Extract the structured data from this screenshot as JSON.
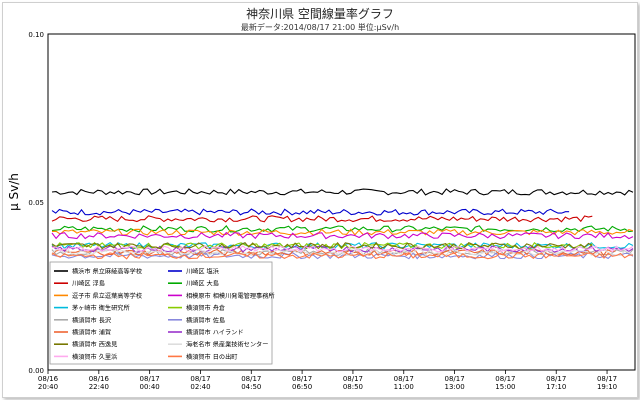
{
  "title": "神奈川県 空間線量率グラフ",
  "subtitle": "最新データ:2014/08/17 21:00  単位:μSv/h",
  "chart_data": {
    "type": "line",
    "title": "神奈川県 空間線量率グラフ",
    "subtitle": "最新データ:2014/08/17 21:00  単位:μSv/h",
    "ylabel": "μ Sv/h",
    "ylim": [
      0.0,
      0.1
    ],
    "yticks": [
      "0.00",
      "0.05",
      "0.10"
    ],
    "grid": true,
    "legend_placement": "lower-left",
    "x_ticks": [
      {
        "date": "08/16",
        "time": "20:40"
      },
      {
        "date": "08/16",
        "time": "22:40"
      },
      {
        "date": "08/17",
        "time": "00:40"
      },
      {
        "date": "08/17",
        "time": "02:40"
      },
      {
        "date": "08/17",
        "time": "04:50"
      },
      {
        "date": "08/17",
        "time": "06:50"
      },
      {
        "date": "08/17",
        "time": "08:50"
      },
      {
        "date": "08/17",
        "time": "11:00"
      },
      {
        "date": "08/17",
        "time": "13:00"
      },
      {
        "date": "08/17",
        "time": "15:00"
      },
      {
        "date": "08/17",
        "time": "17:10"
      },
      {
        "date": "08/17",
        "time": "19:10"
      }
    ],
    "series": [
      {
        "name": "横浜市 県立麻綾高等学校",
        "color": "#000000",
        "level": 0.053,
        "end": 1.0
      },
      {
        "name": "川崎区 塩浜",
        "color": "#0000cc",
        "level": 0.047,
        "end": 0.89
      },
      {
        "name": "川崎区 浮島",
        "color": "#cc0000",
        "level": 0.045,
        "end": 0.93
      },
      {
        "name": "川崎区 大島",
        "color": "#00aa00",
        "level": 0.042,
        "end": 1.0
      },
      {
        "name": "逗子市 県立逗葉高等学校",
        "color": "#ff8800",
        "level": 0.041,
        "end": 1.0
      },
      {
        "name": "相模原市 相模川発電管理事務所",
        "color": "#cc00cc",
        "level": 0.04,
        "end": 1.0
      },
      {
        "name": "茅ヶ崎市 衛生研究所",
        "color": "#00bbdd",
        "level": 0.037,
        "end": 1.0
      },
      {
        "name": "横須賀市 舟倉",
        "color": "#88cc00",
        "level": 0.037,
        "end": 0.93
      },
      {
        "name": "横須賀市 長沢",
        "color": "#aaaaaa",
        "level": 0.035,
        "end": 1.0
      },
      {
        "name": "横須賀市 佐島",
        "color": "#8888dd",
        "level": 0.034,
        "end": 1.0
      },
      {
        "name": "横須賀市 浦賀",
        "color": "#ee6633",
        "level": 0.035,
        "end": 0.97
      },
      {
        "name": "横須賀市 ハイランド",
        "color": "#9933cc",
        "level": 0.036,
        "end": 1.0
      },
      {
        "name": "横須賀市 西逸見",
        "color": "#777700",
        "level": 0.037,
        "end": 0.93
      },
      {
        "name": "海老名市 県産業技術センター",
        "color": "#dddddd",
        "level": 0.035,
        "end": 1.0
      },
      {
        "name": "横須賀市 久里浜",
        "color": "#ffaaee",
        "level": 0.036,
        "end": 1.0
      },
      {
        "name": "横須賀市 日の出町",
        "color": "#ff7744",
        "level": 0.034,
        "end": 1.0
      }
    ]
  }
}
